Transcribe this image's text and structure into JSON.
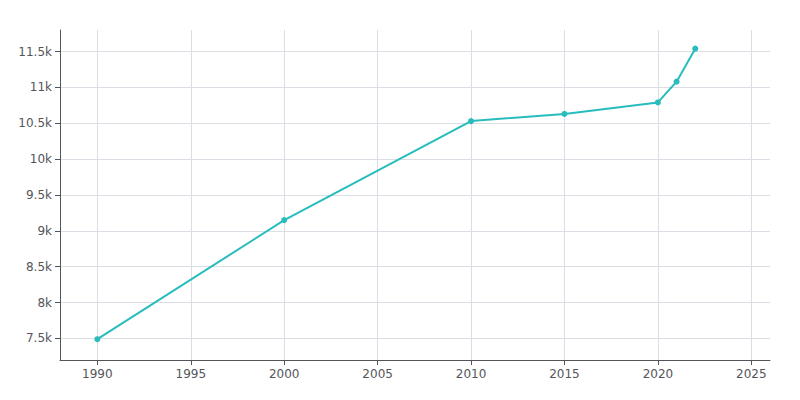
{
  "chart_data": {
    "type": "line",
    "x": [
      1990,
      2000,
      2010,
      2015,
      2020,
      2021,
      2022
    ],
    "values": [
      7490,
      9150,
      10530,
      10630,
      10790,
      11080,
      11540
    ],
    "color": "#29bcbd",
    "marker": "circle",
    "xlim": [
      1988,
      2026
    ],
    "xticks": [
      1990,
      1995,
      2000,
      2005,
      2010,
      2015,
      2020,
      2025
    ],
    "ylim": [
      7200,
      11800
    ],
    "yticks": [
      {
        "value": 7500,
        "label": "7.5k"
      },
      {
        "value": 8000,
        "label": "8k"
      },
      {
        "value": 8500,
        "label": "8.5k"
      },
      {
        "value": 9000,
        "label": "9k"
      },
      {
        "value": 9500,
        "label": "9.5k"
      },
      {
        "value": 10000,
        "label": "10k"
      },
      {
        "value": 10500,
        "label": "10.5k"
      },
      {
        "value": 11000,
        "label": "11k"
      },
      {
        "value": 11500,
        "label": "11.5k"
      }
    ],
    "grid": true
  }
}
